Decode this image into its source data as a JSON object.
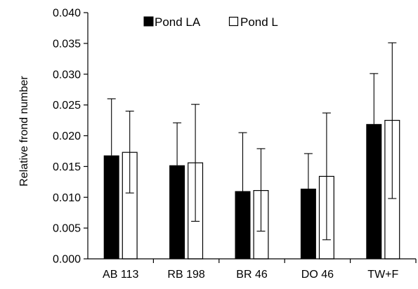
{
  "chart_data": {
    "type": "bar",
    "ylabel": "Relative frond number",
    "xlabel": "",
    "ylim": [
      0,
      0.04
    ],
    "y_ticks": [
      "0.000",
      "0.005",
      "0.010",
      "0.015",
      "0.020",
      "0.025",
      "0.030",
      "0.035",
      "0.040"
    ],
    "categories": [
      "AB 113",
      "RB 198",
      "BR 46",
      "DO 46",
      "TW+F"
    ],
    "grid": false,
    "legend_position": "top",
    "series": [
      {
        "name": "Pond LA",
        "color": "#000000",
        "fill": "solid",
        "values": [
          0.0168,
          0.0152,
          0.011,
          0.0114,
          0.0219
        ],
        "error_upper": [
          0.026,
          0.0221,
          0.0205,
          0.0171,
          0.0301
        ],
        "error_lower": [
          0.0168,
          0.0152,
          0.011,
          0.0114,
          0.0219
        ]
      },
      {
        "name": "Pond L",
        "color": "#ffffff",
        "fill": "outline",
        "values": [
          0.0173,
          0.0156,
          0.0111,
          0.0134,
          0.0225
        ],
        "error_upper": [
          0.024,
          0.0251,
          0.0179,
          0.0237,
          0.0351
        ],
        "error_lower": [
          0.0107,
          0.0061,
          0.0045,
          0.0031,
          0.0098
        ]
      }
    ]
  }
}
